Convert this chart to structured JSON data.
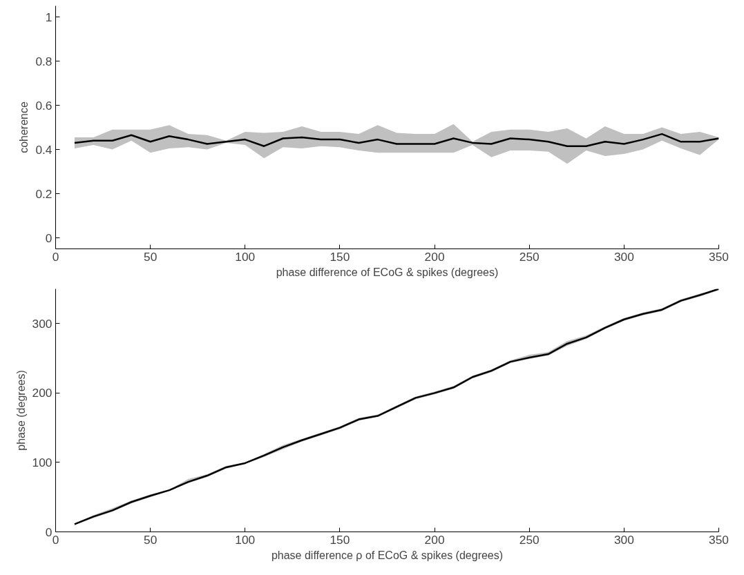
{
  "chart_data": [
    {
      "type": "line",
      "xlabel": "phase difference of ECoG & spikes (degrees)",
      "ylabel": "coherence",
      "x": [
        10,
        20,
        30,
        40,
        50,
        60,
        70,
        80,
        90,
        100,
        110,
        120,
        130,
        140,
        150,
        160,
        170,
        180,
        190,
        200,
        210,
        220,
        230,
        240,
        250,
        260,
        270,
        280,
        290,
        300,
        310,
        320,
        330,
        340,
        350
      ],
      "series": [
        {
          "color": "#000000",
          "values": [
            0.43,
            0.44,
            0.44,
            0.465,
            0.435,
            0.46,
            0.445,
            0.425,
            0.435,
            0.445,
            0.415,
            0.45,
            0.455,
            0.445,
            0.445,
            0.43,
            0.445,
            0.425,
            0.425,
            0.425,
            0.45,
            0.43,
            0.425,
            0.45,
            0.445,
            0.435,
            0.415,
            0.415,
            0.435,
            0.425,
            0.445,
            0.47,
            0.435,
            0.435,
            0.45
          ],
          "lower": [
            0.405,
            0.42,
            0.4,
            0.44,
            0.385,
            0.405,
            0.41,
            0.4,
            0.43,
            0.42,
            0.36,
            0.41,
            0.405,
            0.415,
            0.41,
            0.395,
            0.385,
            0.385,
            0.385,
            0.385,
            0.385,
            0.42,
            0.365,
            0.395,
            0.395,
            0.39,
            0.335,
            0.395,
            0.37,
            0.38,
            0.4,
            0.44,
            0.405,
            0.375,
            0.445
          ],
          "upper": [
            0.455,
            0.455,
            0.49,
            0.49,
            0.49,
            0.51,
            0.47,
            0.465,
            0.44,
            0.48,
            0.475,
            0.48,
            0.505,
            0.48,
            0.48,
            0.47,
            0.51,
            0.475,
            0.47,
            0.47,
            0.515,
            0.435,
            0.48,
            0.49,
            0.49,
            0.48,
            0.495,
            0.45,
            0.505,
            0.47,
            0.47,
            0.5,
            0.47,
            0.48,
            0.455
          ]
        }
      ],
      "xlim": [
        0,
        350
      ],
      "xticks": [
        0,
        50,
        100,
        150,
        200,
        250,
        300,
        350
      ],
      "ylim": [
        -0.05,
        1.05
      ],
      "yticks": [
        0,
        0.2,
        0.4,
        0.6,
        0.8,
        1
      ],
      "grid": false
    },
    {
      "type": "line",
      "xlabel": "phase difference ρ of ECoG & spikes (degrees)",
      "ylabel": "phase (degrees)",
      "x": [
        10,
        20,
        30,
        40,
        50,
        60,
        70,
        80,
        90,
        100,
        110,
        120,
        130,
        140,
        150,
        160,
        170,
        180,
        190,
        200,
        210,
        220,
        230,
        240,
        250,
        260,
        270,
        280,
        290,
        300,
        310,
        320,
        330,
        340,
        350
      ],
      "series": [
        {
          "color": "#000000",
          "values": [
            11,
            22,
            31,
            43,
            52,
            60,
            72,
            81,
            93,
            99,
            110,
            122,
            132,
            141,
            150,
            162,
            167,
            180,
            193,
            200,
            208,
            223,
            232,
            245,
            251,
            256,
            271,
            280,
            294,
            306,
            314,
            320,
            333,
            341,
            350
          ],
          "lower": [
            10,
            20,
            29,
            41,
            50,
            59,
            70,
            79,
            91,
            98,
            108,
            119,
            130,
            139,
            148,
            160,
            166,
            178,
            191,
            198,
            206,
            221,
            230,
            243,
            249,
            254,
            268,
            278,
            292,
            304,
            312,
            318,
            331,
            339,
            348
          ],
          "upper": [
            12,
            24,
            34,
            45,
            54,
            61,
            76,
            83,
            95,
            100,
            112,
            125,
            134,
            143,
            152,
            164,
            169,
            182,
            195,
            202,
            210,
            225,
            234,
            247,
            255,
            259,
            275,
            283,
            296,
            308,
            316,
            322,
            335,
            343,
            350
          ]
        }
      ],
      "xlim": [
        0,
        350
      ],
      "xticks": [
        0,
        50,
        100,
        150,
        200,
        250,
        300,
        350
      ],
      "ylim": [
        0,
        350
      ],
      "yticks": [
        0,
        100,
        200,
        300
      ],
      "grid": false
    }
  ]
}
